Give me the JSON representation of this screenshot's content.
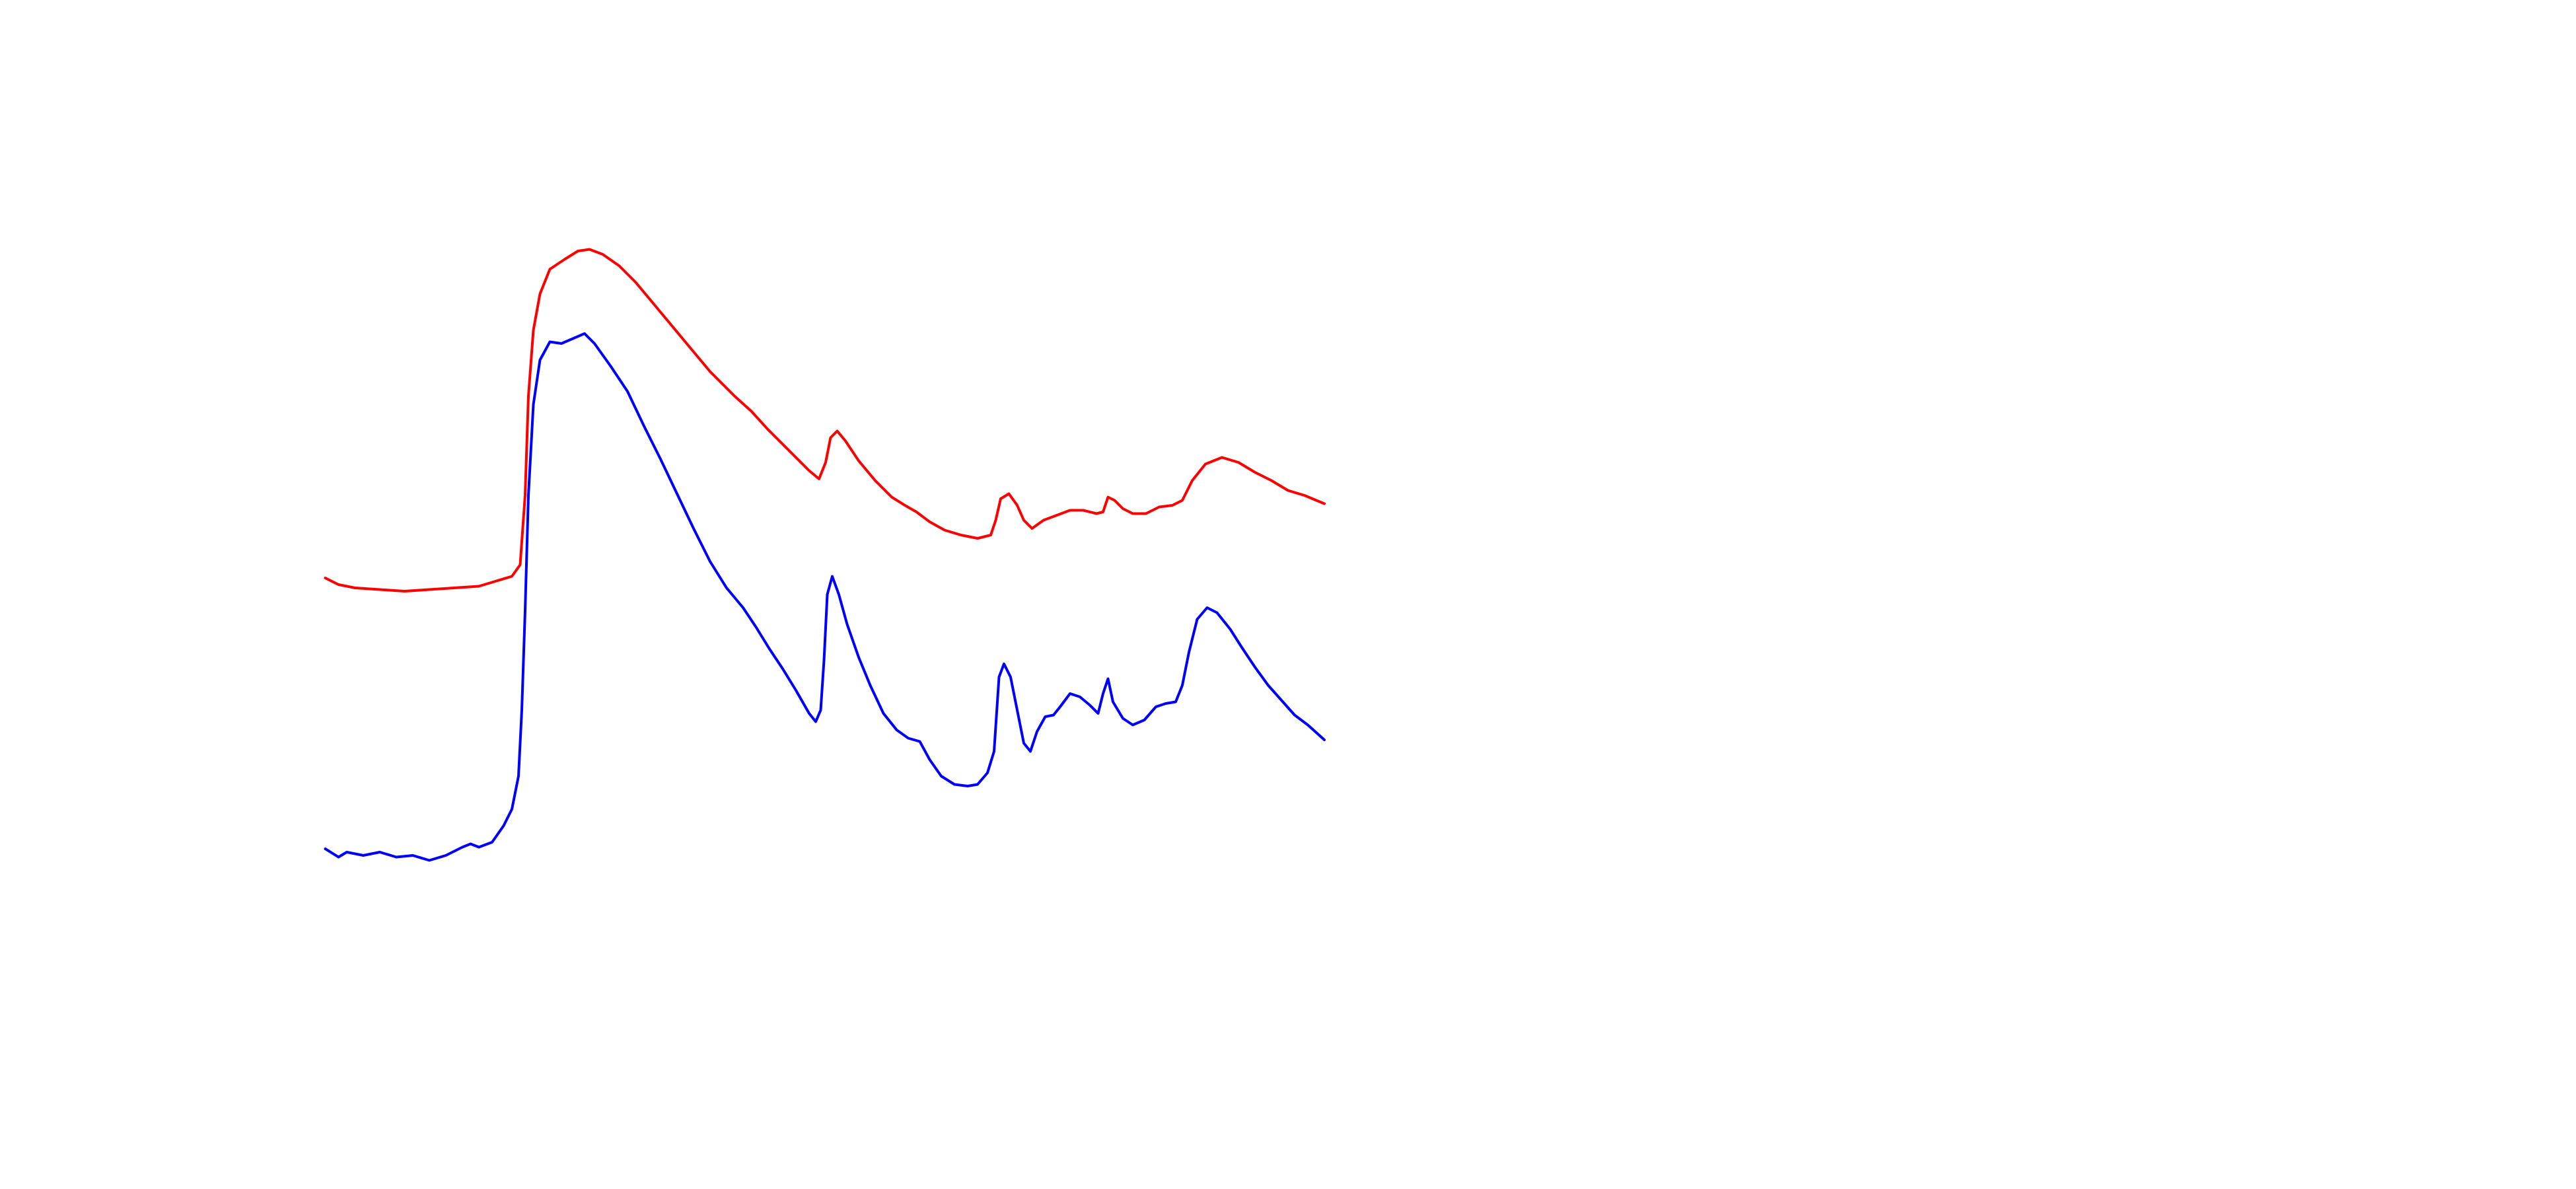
{
  "chart_data": {
    "type": "line",
    "xlim": [
      0,
      605
    ],
    "ylim": [
      0,
      720
    ],
    "grid": false,
    "series": [
      {
        "color": "#ff0000",
        "x": [
          0,
          8,
          18,
          33,
          48,
          63,
          78,
          93,
          103,
          113,
          118,
          121,
          123,
          126,
          130,
          136,
          145,
          153,
          160,
          168,
          178,
          188,
          203,
          218,
          233,
          248,
          258,
          268,
          278,
          288,
          293,
          299,
          303,
          306,
          310,
          315,
          323,
          333,
          343,
          351,
          358,
          366,
          375,
          385,
          395,
          403,
          406,
          409,
          414,
          419,
          423,
          428,
          435,
          443,
          451,
          459,
          467,
          471,
          474,
          478,
          483,
          489,
          497,
          505,
          513,
          519,
          525,
          533,
          543,
          553,
          563,
          573,
          583,
          593,
          605
        ],
        "values": [
          370,
          366,
          364,
          363,
          362,
          363,
          364,
          365,
          368,
          371,
          378,
          420,
          480,
          520,
          542,
          557,
          563,
          568,
          569,
          566,
          559,
          549,
          531,
          513,
          495,
          480,
          471,
          460,
          450,
          440,
          435,
          430,
          440,
          455,
          459,
          453,
          441,
          429,
          419,
          414,
          410,
          404,
          399,
          396,
          394,
          396,
          405,
          418,
          421,
          414,
          405,
          400,
          405,
          408,
          411,
          411,
          409,
          410,
          419,
          417,
          412,
          409,
          409,
          413,
          414,
          417,
          429,
          439,
          443,
          440,
          434,
          429,
          423,
          420,
          415
        ]
      },
      {
        "color": "#0000ff",
        "x": [
          0,
          8,
          13,
          23,
          33,
          43,
          53,
          63,
          73,
          83,
          88,
          93,
          101,
          108,
          113,
          117,
          119,
          121,
          123,
          126,
          130,
          136,
          143,
          150,
          157,
          163,
          173,
          183,
          193,
          203,
          213,
          223,
          233,
          243,
          253,
          261,
          269,
          277,
          285,
          293,
          297,
          300,
          302,
          304,
          307,
          311,
          316,
          323,
          330,
          338,
          346,
          353,
          360,
          366,
          373,
          381,
          389,
          395,
          401,
          405,
          408,
          411,
          415,
          419,
          423,
          427,
          431,
          436,
          441,
          445,
          451,
          457,
          463,
          468,
          471,
          474,
          477,
          483,
          489,
          496,
          503,
          509,
          515,
          519,
          523,
          528,
          534,
          540,
          548,
          555,
          563,
          571,
          579,
          587,
          595,
          605
        ],
        "values": [
          206,
          201,
          204,
          202,
          204,
          201,
          202,
          199,
          202,
          207,
          209,
          207,
          210,
          220,
          230,
          250,
          290,
          350,
          420,
          475,
          502,
          513,
          512,
          515,
          518,
          512,
          498,
          483,
          462,
          442,
          421,
          400,
          380,
          364,
          352,
          340,
          327,
          315,
          302,
          288,
          283,
          290,
          320,
          360,
          371,
          360,
          342,
          322,
          305,
          288,
          278,
          273,
          271,
          260,
          250,
          245,
          244,
          245,
          252,
          265,
          310,
          318,
          310,
          290,
          270,
          265,
          277,
          286,
          287,
          292,
          300,
          298,
          293,
          288,
          300,
          309,
          295,
          285,
          281,
          284,
          292,
          294,
          295,
          305,
          325,
          345,
          352,
          349,
          339,
          328,
          316,
          305,
          296,
          287,
          281,
          272
        ]
      }
    ]
  }
}
